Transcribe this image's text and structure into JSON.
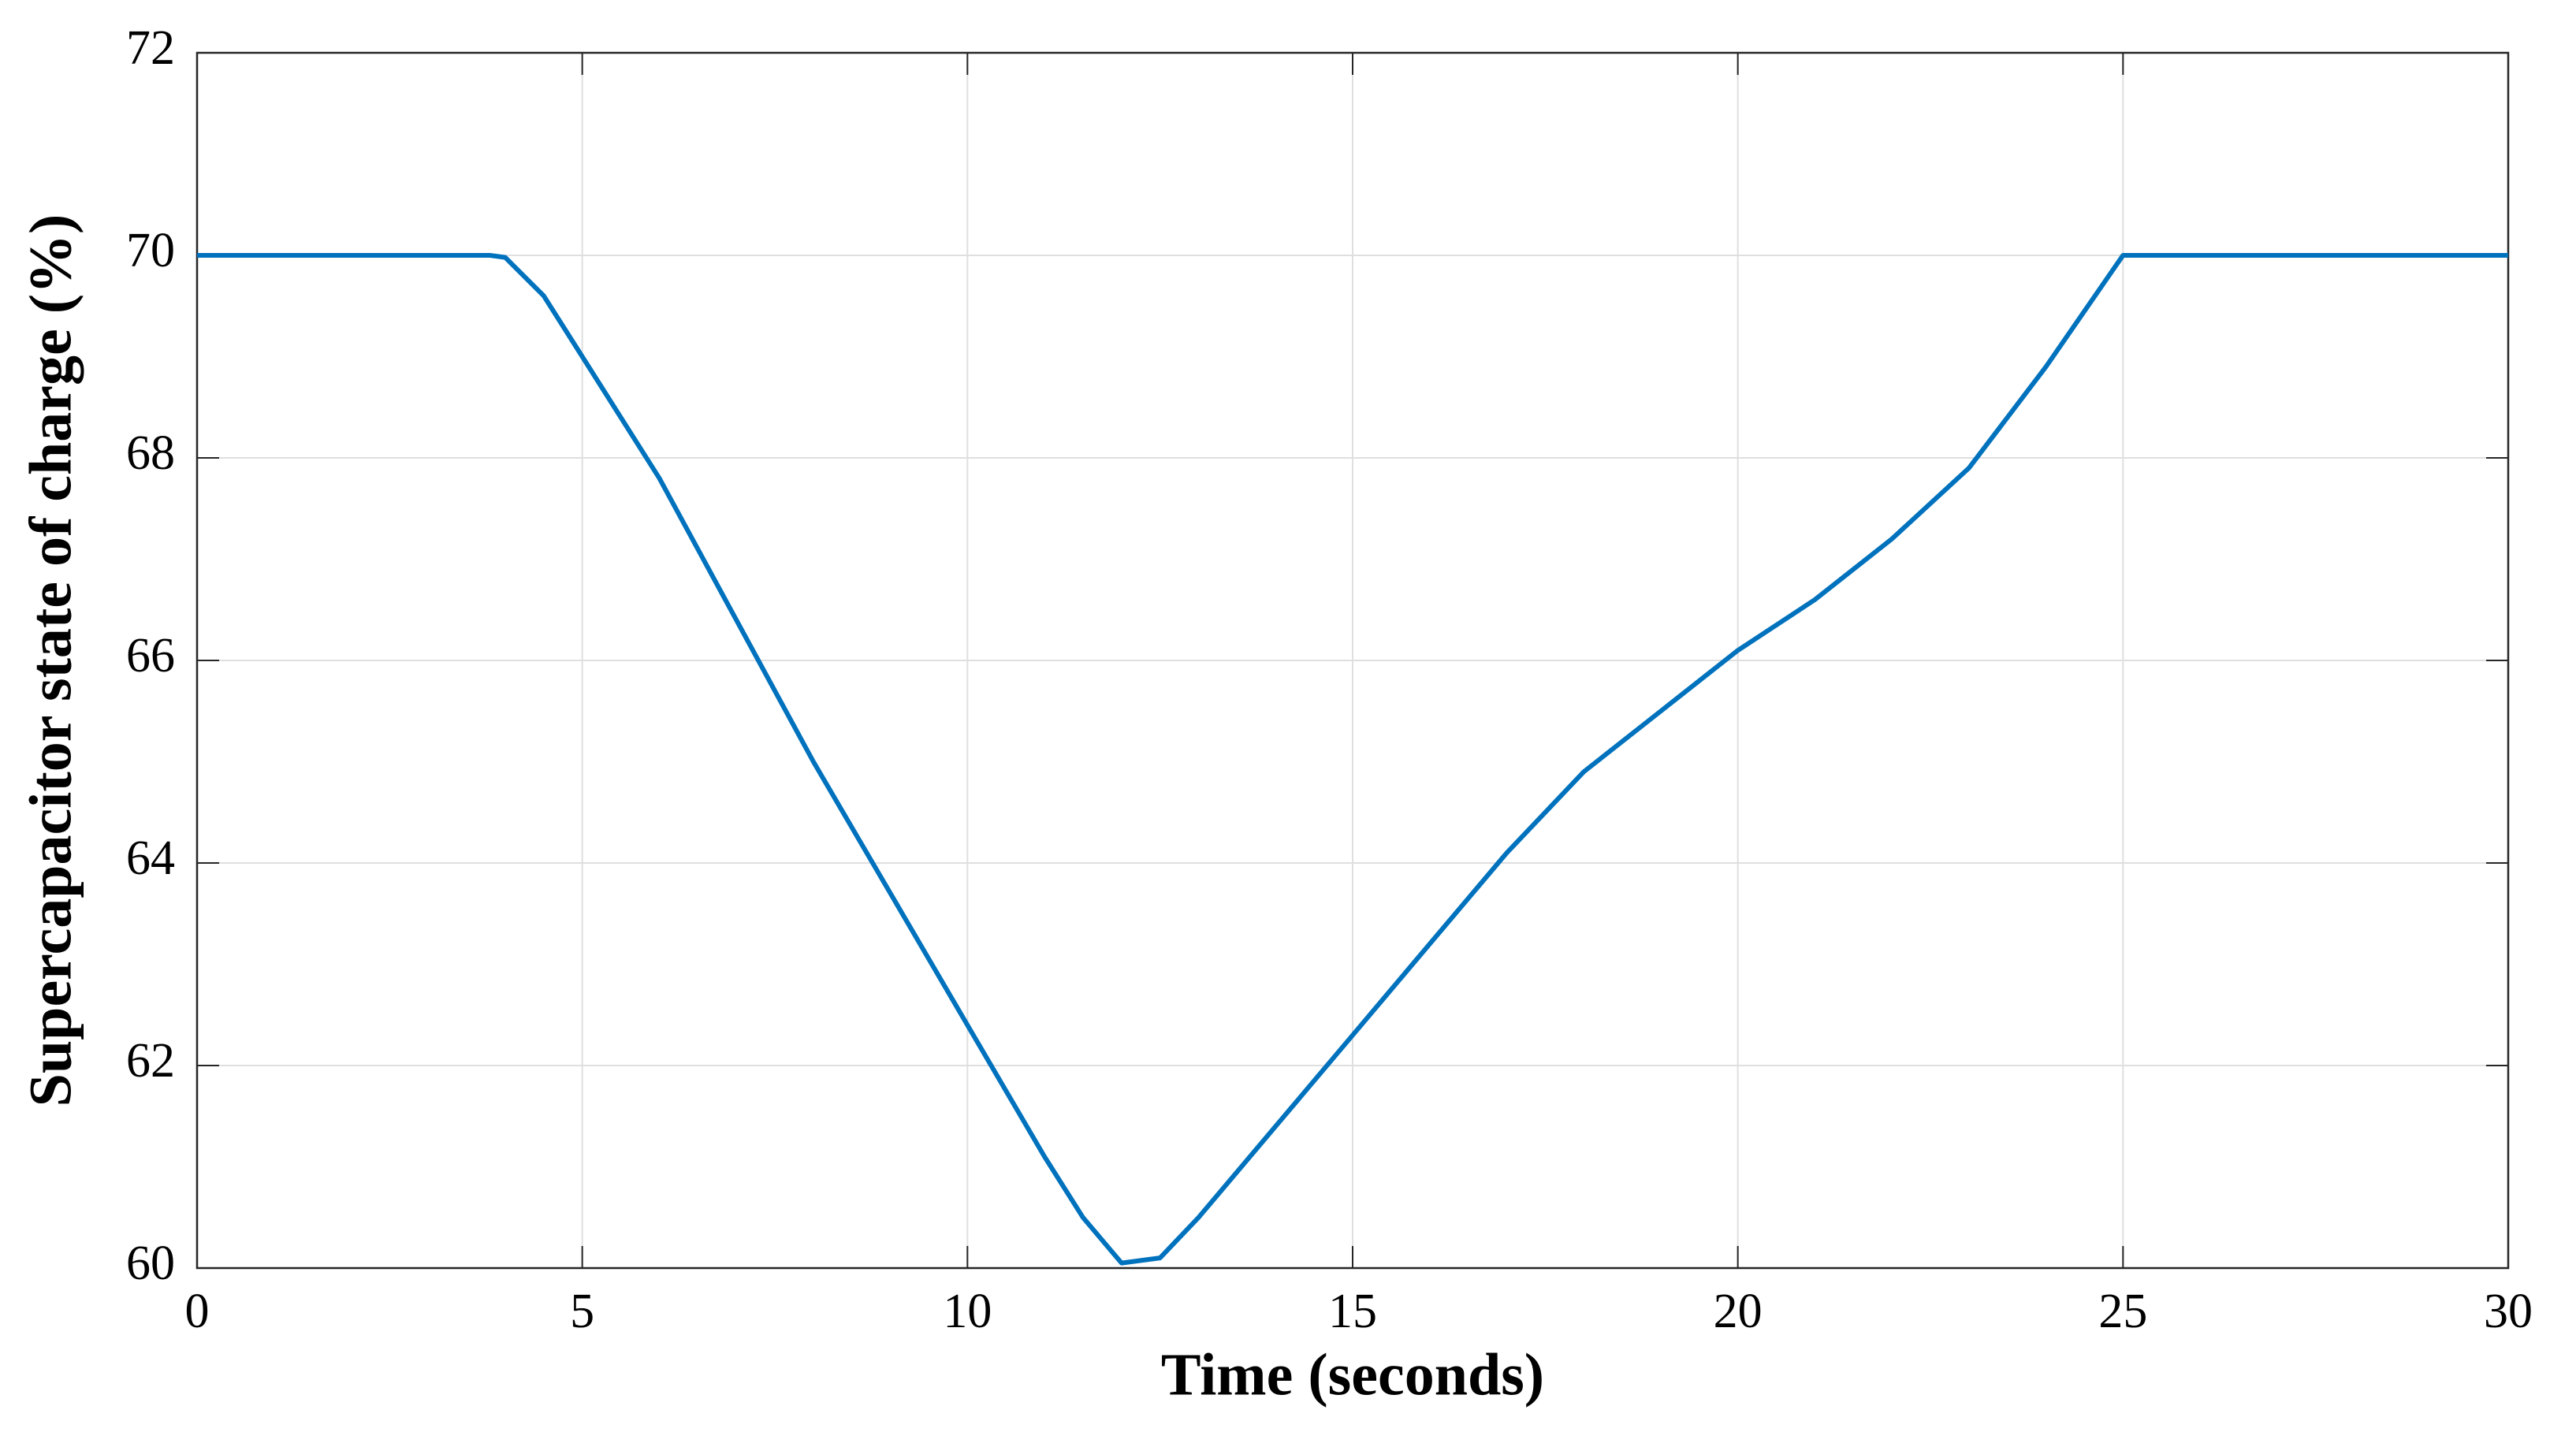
{
  "chart_data": {
    "type": "line",
    "xlabel": "Time (seconds)",
    "ylabel": "Supercapacitor state of charge (%)",
    "x": [
      0,
      3.8,
      4,
      4.5,
      5,
      6,
      7,
      8,
      9,
      10,
      11,
      11.5,
      12,
      12.5,
      13,
      14,
      15,
      16,
      17,
      18,
      19,
      20,
      21,
      22,
      23,
      24,
      25,
      30
    ],
    "values": [
      70,
      70,
      69.98,
      69.6,
      69.0,
      67.8,
      66.4,
      65.0,
      63.7,
      62.4,
      61.1,
      60.5,
      60.05,
      60.1,
      60.5,
      61.4,
      62.3,
      63.2,
      64.1,
      64.9,
      65.5,
      66.1,
      66.6,
      67.2,
      67.9,
      68.9,
      70,
      70
    ],
    "color": "#0072bd",
    "xlim": [
      0,
      30
    ],
    "xticks": [
      0,
      5,
      10,
      15,
      20,
      25,
      30
    ],
    "ylim": [
      60,
      72
    ],
    "yticks": [
      60,
      62,
      64,
      66,
      68,
      70,
      72
    ],
    "grid": true
  }
}
